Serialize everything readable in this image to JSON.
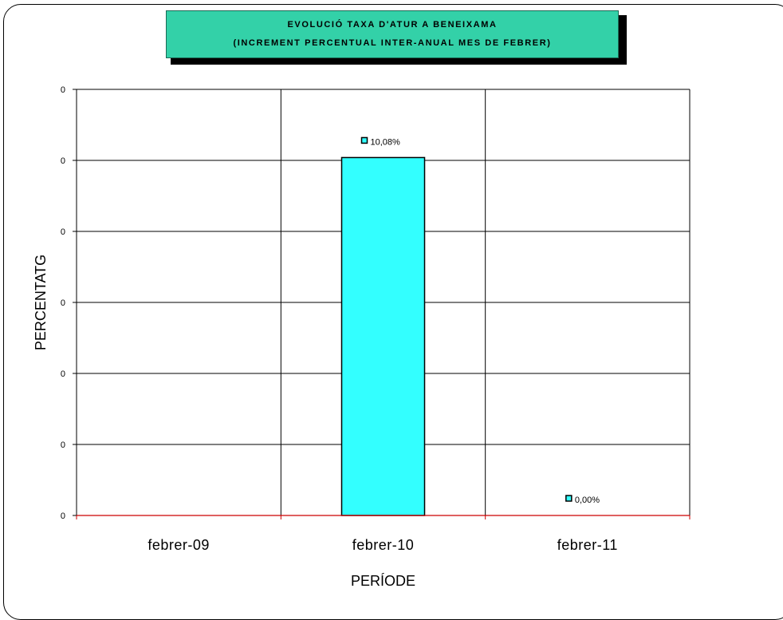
{
  "chart_data": {
    "type": "bar",
    "title_lines": [
      "EVOLUCIÓ TAXA D'ATUR A BENEIXAMA",
      "(INCREMENT PERCENTUAL INTER-ANUAL MES DE FEBRER)"
    ],
    "xlabel": "PERÍODE",
    "ylabel": "PERCENTATG",
    "categories": [
      "febrer-09",
      "febrer-10",
      "febrer-11"
    ],
    "values": [
      null,
      0.1008,
      0.0
    ],
    "data_labels": [
      "",
      "10,08%",
      "0,00%"
    ],
    "ylim": [
      0,
      0.12
    ],
    "yticks": [
      0,
      0.02,
      0.04,
      0.06,
      0.08,
      0.1,
      0.12
    ],
    "ytick_labels": [
      "0",
      "0",
      "0",
      "0",
      "0",
      "0",
      "0"
    ],
    "grid": true,
    "colors": {
      "bar": "#33ffff",
      "baseline": "#cc0000",
      "title_bg": "#33d1a8",
      "marker": "#33ffff"
    }
  }
}
